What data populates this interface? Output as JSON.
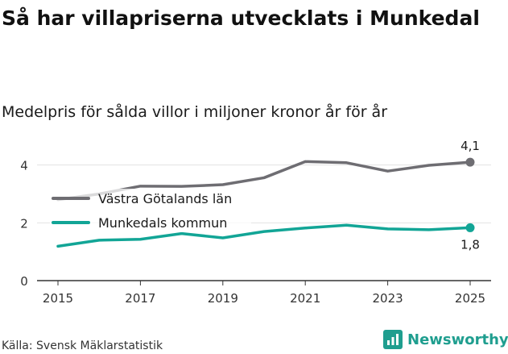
{
  "header": {
    "title": "Så har villapriserna utvecklats i Munkedal",
    "subtitle": "Medelpris för sålda villor i miljoner kronor år för år"
  },
  "footer": {
    "source": "Källa: Svensk Mäklarstatistik",
    "brand": "Newsworthy"
  },
  "chart_data": {
    "type": "line",
    "title": "Så har villapriserna utvecklats i Munkedal",
    "subtitle": "Medelpris för sålda villor i miljoner kronor år för år",
    "xlabel": "",
    "ylabel": "",
    "x": [
      2015,
      2016,
      2017,
      2018,
      2019,
      2020,
      2021,
      2022,
      2023,
      2024,
      2025
    ],
    "xticks": [
      "2015",
      "2017",
      "2019",
      "2021",
      "2023",
      "2025"
    ],
    "yticks": [
      0,
      2,
      4
    ],
    "ylim": [
      0,
      4.8
    ],
    "grid": true,
    "legend": "inside-left",
    "series": [
      {
        "name": "Västra Götalands län",
        "color": "#6e6d72",
        "values": [
          2.8,
          3.0,
          3.27,
          3.26,
          3.32,
          3.56,
          4.12,
          4.08,
          3.79,
          3.99,
          4.1
        ],
        "end_label": "4,1"
      },
      {
        "name": "Munkedals kommun",
        "color": "#12a596",
        "values": [
          1.19,
          1.4,
          1.43,
          1.63,
          1.48,
          1.7,
          1.82,
          1.92,
          1.79,
          1.76,
          1.83
        ],
        "end_label": "1,8"
      }
    ]
  }
}
